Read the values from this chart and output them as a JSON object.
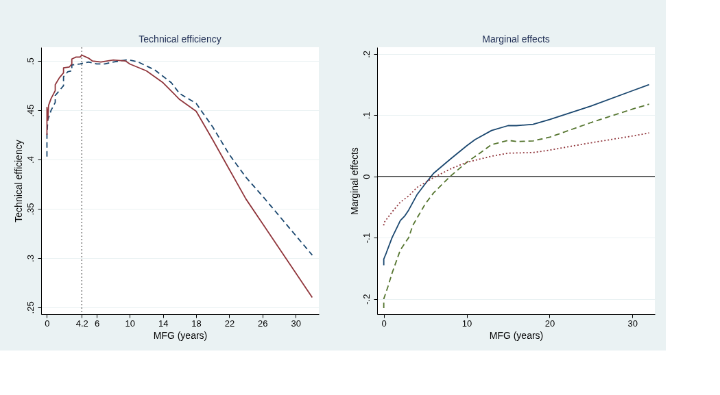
{
  "chart_data": [
    {
      "type": "line",
      "title": "Technical efficiency",
      "xlabel": "MFG (years)",
      "ylabel": "Technical efficiency",
      "grid": "y",
      "xlim": [
        -0.7,
        32.8
      ],
      "xticks": [
        0,
        4.2,
        6,
        10,
        14,
        18,
        22,
        26,
        30
      ],
      "ylim": [
        0.243,
        0.514
      ],
      "yticks": [
        {
          "value": 0.25,
          "label": ".25"
        },
        {
          "value": 0.3,
          "label": ".3"
        },
        {
          "value": 0.35,
          "label": ".35"
        },
        {
          "value": 0.4,
          "label": ".4"
        },
        {
          "value": 0.45,
          "label": ".45"
        },
        {
          "value": 0.5,
          "label": ".5"
        }
      ],
      "ref_lines": [
        {
          "axis": "x",
          "value": 4.2,
          "color": "#333333",
          "line_style": "dotted"
        }
      ],
      "series": [
        {
          "color": "#1a476f",
          "line_style": "dashed",
          "x": [
            0,
            0,
            0.1,
            0.5,
            1,
            1,
            2,
            2,
            2.5,
            3,
            3,
            4,
            5,
            6,
            7,
            8,
            9.5,
            10,
            11,
            13,
            15,
            16,
            18,
            20,
            22,
            24,
            26,
            28,
            30,
            32
          ],
          "values": [
            0.403,
            0.425,
            0.44,
            0.45,
            0.458,
            0.465,
            0.475,
            0.484,
            0.489,
            0.49,
            0.496,
            0.497,
            0.499,
            0.497,
            0.497,
            0.499,
            0.501,
            0.501,
            0.499,
            0.491,
            0.478,
            0.467,
            0.457,
            0.433,
            0.405,
            0.382,
            0.363,
            0.343,
            0.323,
            0.303
          ]
        },
        {
          "color": "#90353b",
          "line_style": "solid",
          "x": [
            0,
            0,
            0.1,
            0.2,
            0.5,
            1,
            1,
            1.5,
            2,
            2,
            2.7,
            3,
            3,
            3.5,
            4,
            4.2,
            5,
            5.5,
            6.5,
            8,
            9.5,
            10,
            12,
            14,
            16,
            18,
            20,
            22,
            24,
            26,
            28,
            30,
            32
          ],
          "values": [
            0.425,
            0.453,
            0.44,
            0.455,
            0.462,
            0.47,
            0.476,
            0.483,
            0.488,
            0.493,
            0.494,
            0.497,
            0.502,
            0.504,
            0.504,
            0.506,
            0.503,
            0.5,
            0.499,
            0.501,
            0.5,
            0.497,
            0.49,
            0.478,
            0.461,
            0.449,
            0.42,
            0.39,
            0.36,
            0.335,
            0.31,
            0.285,
            0.26
          ]
        }
      ]
    },
    {
      "type": "line",
      "title": "Marginal effects",
      "xlabel": "MFG (years)",
      "ylabel": "Marginal effects",
      "grid": "y",
      "xlim": [
        -0.8,
        32.7
      ],
      "xticks": [
        0,
        10,
        20,
        30
      ],
      "ylim": [
        -0.225,
        0.211
      ],
      "yticks": [
        {
          "value": -0.2,
          "label": "-.2"
        },
        {
          "value": -0.1,
          "label": "-.1"
        },
        0,
        {
          "value": 0.1,
          "label": ".1"
        },
        {
          "value": 0.2,
          "label": ".2"
        }
      ],
      "ref_lines": [
        {
          "axis": "y",
          "value": 0,
          "color": "#000000",
          "line_style": "solid"
        }
      ],
      "series": [
        {
          "color": "#1a476f",
          "line_style": "solid",
          "x": [
            0,
            0,
            0.3,
            1,
            2,
            2.5,
            3,
            4,
            5,
            6,
            8,
            10,
            11,
            13,
            15,
            16,
            18,
            20,
            25,
            30,
            32
          ],
          "values": [
            -0.145,
            -0.135,
            -0.125,
            -0.1,
            -0.072,
            -0.065,
            -0.055,
            -0.03,
            -0.012,
            0.005,
            0.028,
            0.05,
            0.06,
            0.075,
            0.083,
            0.083,
            0.085,
            0.093,
            0.115,
            0.14,
            0.15
          ]
        },
        {
          "color": "#55752f",
          "line_style": "dashed",
          "x": [
            0,
            0,
            0.5,
            1,
            2,
            3,
            3.5,
            5,
            6,
            8,
            10,
            12,
            13,
            15,
            16,
            18,
            20,
            25,
            30,
            32
          ],
          "values": [
            -0.215,
            -0.2,
            -0.18,
            -0.158,
            -0.12,
            -0.1,
            -0.08,
            -0.045,
            -0.027,
            0,
            0.023,
            0.042,
            0.052,
            0.059,
            0.057,
            0.058,
            0.064,
            0.088,
            0.11,
            0.118
          ]
        },
        {
          "color": "#90353b",
          "line_style": "dotted",
          "x": [
            0,
            0,
            1,
            2,
            3,
            4,
            5,
            6,
            8,
            10,
            13,
            15,
            18,
            20,
            25,
            30,
            32
          ],
          "values": [
            -0.08,
            -0.076,
            -0.058,
            -0.042,
            -0.032,
            -0.018,
            -0.01,
            -0.002,
            0.012,
            0.023,
            0.033,
            0.038,
            0.039,
            0.043,
            0.055,
            0.066,
            0.071
          ]
        }
      ]
    }
  ]
}
